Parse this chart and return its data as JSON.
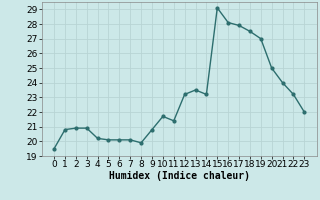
{
  "x": [
    0,
    1,
    2,
    3,
    4,
    5,
    6,
    7,
    8,
    9,
    10,
    11,
    12,
    13,
    14,
    15,
    16,
    17,
    18,
    19,
    20,
    21,
    22,
    23
  ],
  "y": [
    19.5,
    20.8,
    20.9,
    20.9,
    20.2,
    20.1,
    20.1,
    20.1,
    19.9,
    20.8,
    21.7,
    21.4,
    23.2,
    23.5,
    23.2,
    29.1,
    28.1,
    27.9,
    27.5,
    27.0,
    25.0,
    24.0,
    23.2,
    22.0
  ],
  "line_color": "#2d6e6e",
  "marker": "o",
  "marker_size": 2.0,
  "linewidth": 1.0,
  "bg_color": "#cce8e8",
  "grid_color": "#b8d4d4",
  "xlabel": "Humidex (Indice chaleur)",
  "xlabel_fontsize": 7,
  "tick_fontsize": 6.5,
  "ylim": [
    19,
    29.5
  ],
  "yticks": [
    19,
    20,
    21,
    22,
    23,
    24,
    25,
    26,
    27,
    28,
    29
  ],
  "xticks": [
    0,
    1,
    2,
    3,
    4,
    5,
    6,
    7,
    8,
    9,
    10,
    11,
    12,
    13,
    14,
    15,
    16,
    17,
    18,
    19,
    20,
    21,
    22,
    23
  ]
}
